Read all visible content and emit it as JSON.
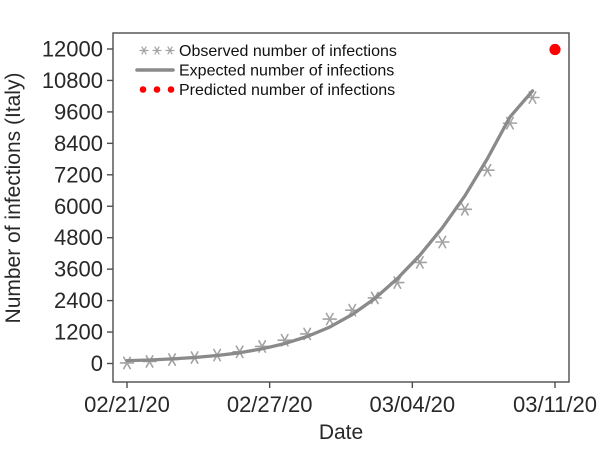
{
  "chart_data": {
    "type": "line",
    "title": "",
    "xlabel": "Date",
    "ylabel": "Number of infections (Italy)",
    "grid": false,
    "legend_position": "top-left-inside",
    "x_axis": {
      "range_days": [
        0,
        19
      ],
      "start_date": "02/21/20",
      "ticks": [
        {
          "label": "02/21/20",
          "pos": 0.0
        },
        {
          "label": "02/27/20",
          "pos": 0.3333
        },
        {
          "label": "03/04/20",
          "pos": 0.6667
        },
        {
          "label": "03/11/20",
          "pos": 1.0
        }
      ]
    },
    "y_axis": {
      "lim": [
        0,
        12000
      ],
      "ticks": [
        0,
        1200,
        2400,
        3600,
        4800,
        6000,
        7200,
        8400,
        9600,
        10800,
        12000
      ]
    },
    "series": [
      {
        "name": "Observed number of infections",
        "type": "scatter",
        "marker": "asterisk",
        "color": "#a3a3a3",
        "days": [
          0,
          1,
          2,
          3,
          4,
          5,
          6,
          7,
          8,
          9,
          10,
          11,
          12,
          13,
          14,
          15,
          16,
          17,
          18
        ],
        "values": [
          20,
          79,
          150,
          227,
          320,
          445,
          650,
          888,
          1128,
          1694,
          2036,
          2502,
          3089,
          3858,
          4636,
          5883,
          7375,
          9172,
          10149
        ]
      },
      {
        "name": "Expected number of infections",
        "type": "line",
        "marker": "none",
        "color": "#8a8a8a",
        "days": [
          0,
          1,
          2,
          3,
          4,
          5,
          6,
          7,
          8,
          9,
          10,
          11,
          12,
          13,
          14,
          15,
          16,
          17,
          18
        ],
        "values": [
          110,
          135,
          175,
          230,
          305,
          410,
          560,
          760,
          1030,
          1390,
          1870,
          2480,
          3240,
          4130,
          5180,
          6400,
          7820,
          9400,
          10400
        ]
      },
      {
        "name": "Predicted number of infections",
        "type": "scatter",
        "marker": "dot",
        "color": "#ff0000",
        "days": [
          19
        ],
        "values": [
          11980
        ]
      }
    ]
  }
}
